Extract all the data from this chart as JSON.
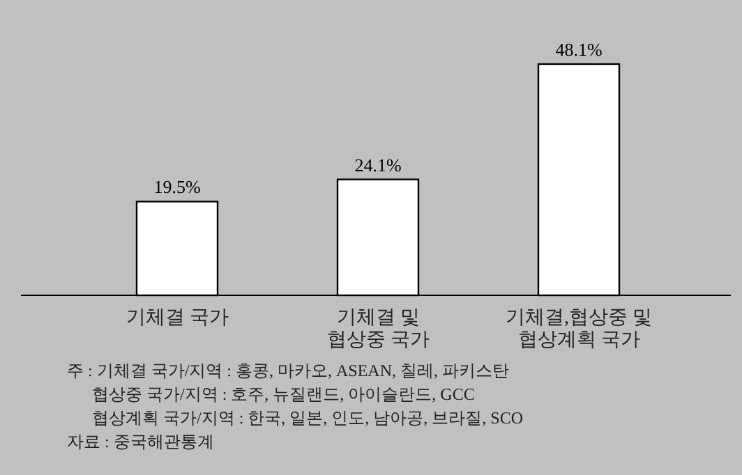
{
  "chart_data": {
    "type": "bar",
    "categories": [
      "기체결 국가",
      "기체결 및\n협상중 국가",
      "기체결,협상중 및\n협상계획 국가"
    ],
    "values": [
      19.5,
      24.1,
      48.1
    ],
    "value_labels": [
      "19.5%",
      "24.1%",
      "48.1%"
    ],
    "color": "#ffffff",
    "annotations": [
      "주 : 기체결 국가/지역 : 홍콩, 마카오, ASEAN, 칠레, 파키스탄",
      "      협상중 국가/지역 : 호주, 뉴질랜드, 아이슬란드, GCC",
      "      협상계획 국가/지역 : 한국, 일본, 인도, 남아공, 브라질, SCO",
      "자료 : 중국해관통계"
    ]
  }
}
